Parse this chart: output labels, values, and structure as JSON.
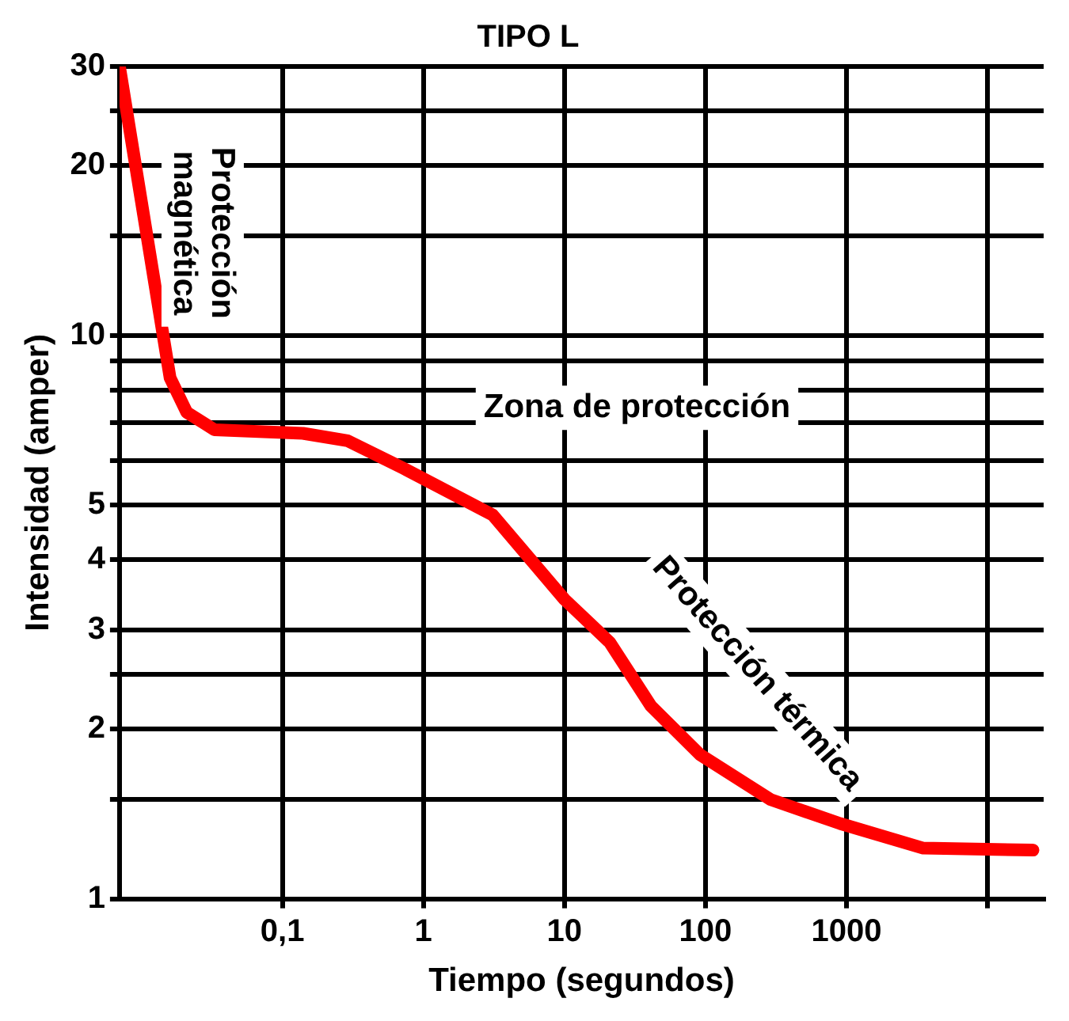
{
  "chart_data": {
    "type": "line",
    "title": "TIPO L",
    "xlabel": "Tiempo (segundos)",
    "ylabel": "Intensidad (amper)",
    "x": [
      0.007,
      0.014,
      0.016,
      0.021,
      0.033,
      0.14,
      0.29,
      0.73,
      3.1,
      10,
      21,
      41,
      92,
      290,
      900,
      3500,
      21000
    ],
    "series": [
      {
        "color": "#ff0000",
        "values": [
          30,
          10.3,
          8.4,
          7.3,
          6.8,
          6.7,
          6.5,
          5.8,
          4.8,
          3.4,
          2.85,
          2.2,
          1.8,
          1.5,
          1.36,
          1.23,
          1.22
        ]
      }
    ],
    "log": "xy",
    "xlim": [
      0.007,
      25000
    ],
    "ylim": [
      1,
      30
    ],
    "xticks": [
      {
        "value": 0.1,
        "label": "0,1"
      },
      1,
      10,
      100,
      1000,
      {
        "value": 10000,
        "label": null
      }
    ],
    "yticks": [
      1,
      {
        "value": 1.5,
        "label": null
      },
      2,
      {
        "value": 2.5,
        "label": null
      },
      3,
      4,
      5,
      {
        "value": 6,
        "label": null
      },
      {
        "value": 7,
        "label": null
      },
      {
        "value": 8,
        "label": null
      },
      {
        "value": 9,
        "label": null
      },
      10,
      {
        "value": 15,
        "label": null
      },
      20,
      {
        "value": 25,
        "label": null
      },
      30
    ],
    "grid": true,
    "legend": false,
    "marker": "none",
    "line_style": "solid",
    "annotations": [
      "Protección magnética",
      "Zona de protección",
      "Protección térmica"
    ]
  }
}
